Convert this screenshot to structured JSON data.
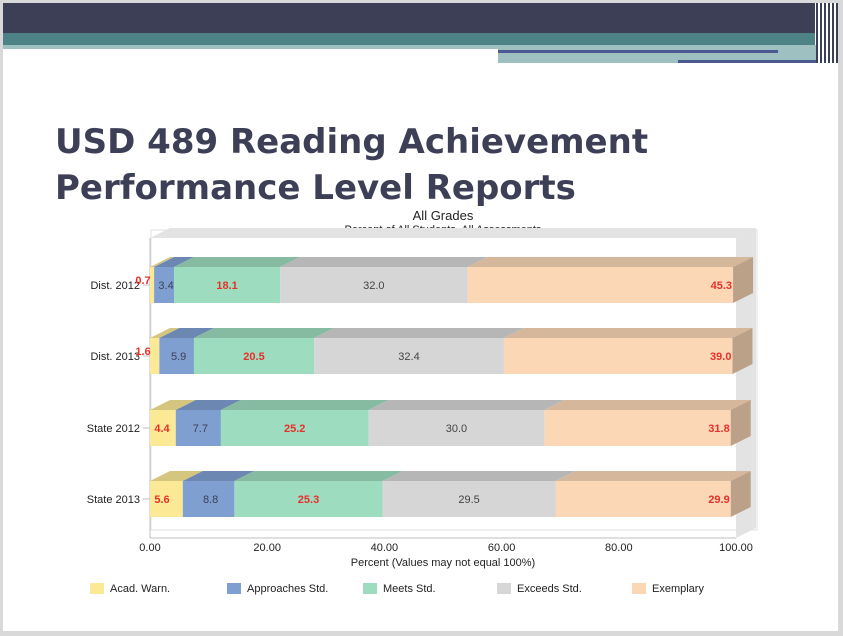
{
  "slide": {
    "title_line1": "USD 489 Reading Achievement",
    "title_line2": "Performance Level Reports"
  },
  "chart_data": {
    "type": "bar",
    "orientation": "horizontal",
    "stacked": true,
    "title": "All Grades",
    "subtitle": "Percent of All Students, All Assessments",
    "xlabel": "Percent (Values may not equal 100%)",
    "xlim": [
      0,
      100
    ],
    "xticks": [
      "0.00",
      "20.00",
      "40.00",
      "60.00",
      "80.00",
      "100.00"
    ],
    "categories": [
      "Dist. 2012",
      "Dist. 2013",
      "State 2012",
      "State 2013"
    ],
    "series": [
      {
        "name": "Acad. Warn.",
        "color": "#fbe995",
        "label_color": "#e8302a",
        "values": [
          0.7,
          1.6,
          4.4,
          5.6
        ]
      },
      {
        "name": "Approaches Std.",
        "color": "#7f9fd1",
        "label_color": "#3c3f55",
        "values": [
          3.4,
          5.9,
          7.7,
          8.8
        ]
      },
      {
        "name": "Meets Std.",
        "color": "#9edcbf",
        "label_color": "#e8302a",
        "values": [
          18.1,
          20.5,
          25.2,
          25.3
        ]
      },
      {
        "name": "Exceeds Std.",
        "color": "#d6d6d6",
        "label_color": "#444444",
        "values": [
          32.0,
          32.4,
          30.0,
          29.5
        ]
      },
      {
        "name": "Exemplary",
        "color": "#fbd7b6",
        "label_color": "#e8302a",
        "values": [
          45.3,
          39.0,
          31.8,
          29.9
        ]
      }
    ],
    "legend_position": "bottom",
    "grid": false
  }
}
